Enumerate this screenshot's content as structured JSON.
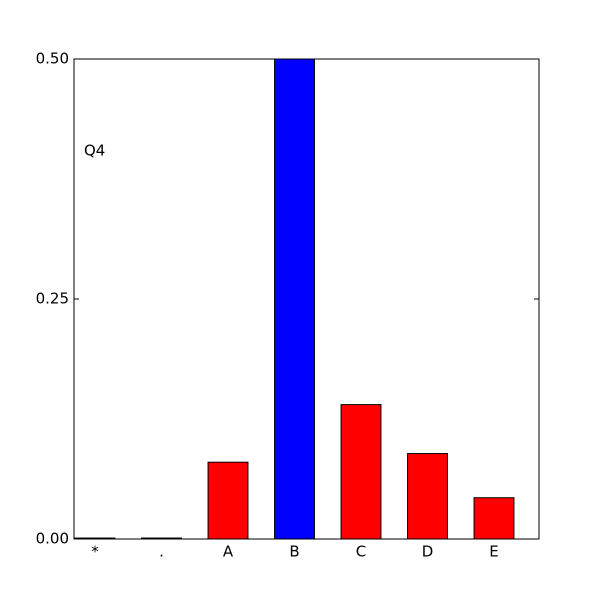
{
  "chart_data": {
    "type": "bar",
    "annotation": "Q4",
    "categories": [
      "*",
      ".",
      "A",
      "B",
      "C",
      "D",
      "E"
    ],
    "values": [
      0.001,
      0.001,
      0.08,
      0.5,
      0.14,
      0.089,
      0.043
    ],
    "colors": [
      "#ff0000",
      "#ff0000",
      "#ff0000",
      "#0000ff",
      "#ff0000",
      "#ff0000",
      "#ff0000"
    ],
    "ylim": [
      0,
      0.5
    ],
    "yticks": [
      {
        "value": 0,
        "label": "0.00"
      },
      {
        "value": 0.25,
        "label": "0.25"
      },
      {
        "value": 0.5,
        "label": "0.50"
      }
    ],
    "grid": false
  }
}
